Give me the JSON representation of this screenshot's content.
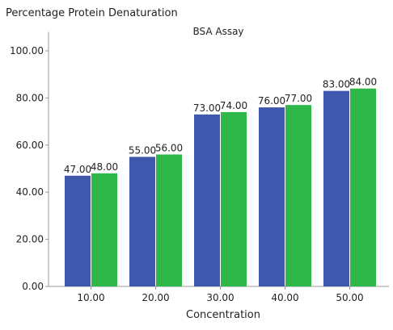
{
  "chart_data": {
    "type": "bar",
    "title": "Percentage Protein Denaturation",
    "subtitle": "BSA Assay",
    "xlabel": "Concentration",
    "ylabel": "",
    "categories": [
      "10.00",
      "20.00",
      "30.00",
      "40.00",
      "50.00"
    ],
    "series": [
      {
        "values": [
          47.0,
          55.0,
          73.0,
          76.0,
          83.0
        ],
        "color": "#3f57ac"
      },
      {
        "values": [
          48.0,
          56.0,
          74.0,
          77.0,
          84.0
        ],
        "color": "#2fb84a"
      }
    ],
    "data_labels": [
      [
        "47.00",
        "55.00",
        "73.00",
        "76.00",
        "83.00"
      ],
      [
        "48.00",
        "56.00",
        "74.00",
        "77.00",
        "84.00"
      ]
    ],
    "yticks": [
      0,
      20,
      40,
      60,
      80,
      100
    ],
    "ytick_labels": [
      "0.00",
      "20.00",
      "40.00",
      "60.00",
      "80.00",
      "100.00"
    ],
    "ylim": [
      0,
      108
    ],
    "grid": false,
    "legend": "none"
  }
}
